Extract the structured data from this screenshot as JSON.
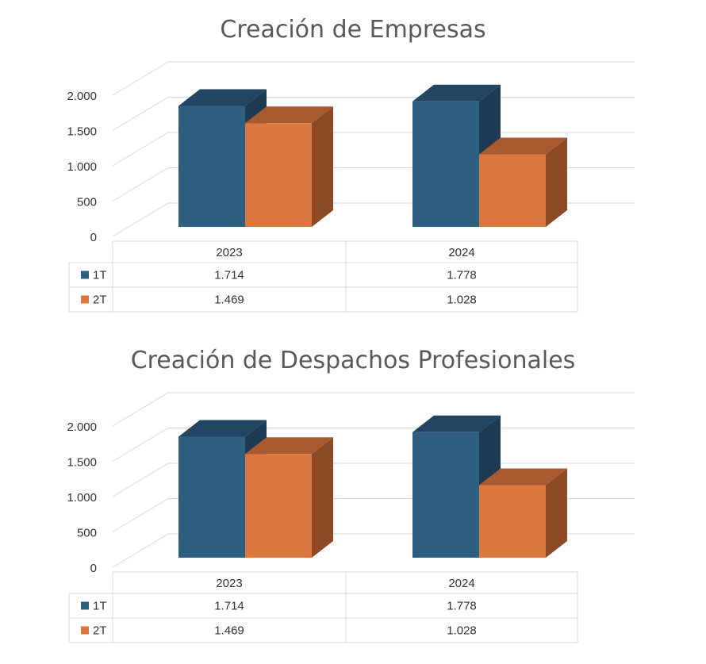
{
  "colors": {
    "series_1": "#2e5f80",
    "series_1_top": "#214563",
    "series_1_side": "#1d3b52",
    "series_2": "#db7840",
    "series_2_top": "#a95a30",
    "series_2_side": "#8c4a26",
    "grid": "#d9d9d9",
    "text": "#333333",
    "title": "#595959"
  },
  "chart_data": [
    {
      "type": "bar",
      "title": "Creación de Empresas",
      "categories": [
        "2023",
        "2024"
      ],
      "series": [
        {
          "name": "1T",
          "values": [
            1714,
            1778
          ],
          "labels": [
            "1.714",
            "1.778"
          ]
        },
        {
          "name": "2T",
          "values": [
            1469,
            1028
          ],
          "labels": [
            "1.469",
            "1.028"
          ]
        }
      ],
      "ylim": [
        0,
        2000
      ],
      "yticks": [
        0,
        500,
        1000,
        1500,
        2000
      ],
      "ytick_labels": [
        "0",
        "500",
        "1.000",
        "1.500",
        "2.000"
      ],
      "grid": true,
      "data_table": true
    },
    {
      "type": "bar",
      "title": "Creación de Despachos Profesionales",
      "categories": [
        "2023",
        "2024"
      ],
      "series": [
        {
          "name": "1T",
          "values": [
            1714,
            1778
          ],
          "labels": [
            "1.714",
            "1.778"
          ]
        },
        {
          "name": "2T",
          "values": [
            1469,
            1028
          ],
          "labels": [
            "1.469",
            "1.028"
          ]
        }
      ],
      "ylim": [
        0,
        2000
      ],
      "yticks": [
        0,
        500,
        1000,
        1500,
        2000
      ],
      "ytick_labels": [
        "0",
        "500",
        "1.000",
        "1.500",
        "2.000"
      ],
      "grid": true,
      "data_table": true
    }
  ]
}
